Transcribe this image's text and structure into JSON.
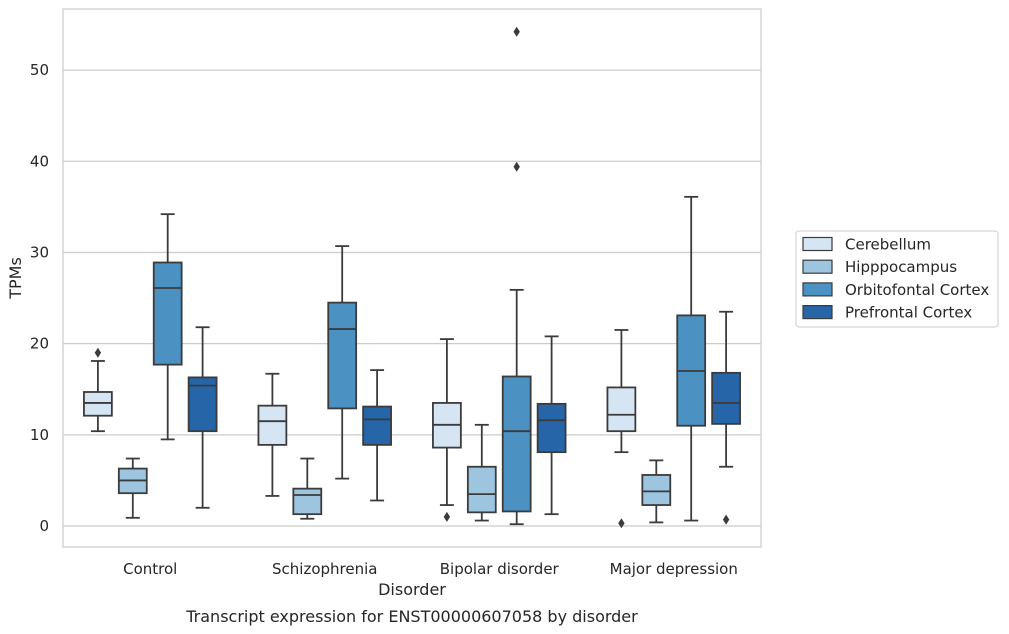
{
  "chart_data": {
    "type": "box",
    "xlabel": "Disorder",
    "ylabel": "TPMs",
    "caption": "Transcript expression for ENST00000607058 by disorder",
    "ylim": [
      -2.3,
      56.7
    ],
    "yticks": [
      0,
      10,
      20,
      30,
      40,
      50
    ],
    "grid": "horizontal",
    "legend_position": "right",
    "categories": [
      "Control",
      "Schizophrenia",
      "Bipolar disorder",
      "Major depression"
    ],
    "series": [
      {
        "name": "Cerebellum",
        "color": "#d5e5f3",
        "boxes": [
          {
            "whislo": 10.4,
            "q1": 12.1,
            "med": 13.5,
            "q3": 14.7,
            "whishi": 18.1,
            "fliers": [
              19.0
            ]
          },
          {
            "whislo": 3.3,
            "q1": 8.9,
            "med": 11.5,
            "q3": 13.2,
            "whishi": 16.7,
            "fliers": []
          },
          {
            "whislo": 2.3,
            "q1": 8.6,
            "med": 11.1,
            "q3": 13.5,
            "whishi": 20.5,
            "fliers": [
              1.0
            ]
          },
          {
            "whislo": 8.1,
            "q1": 10.4,
            "med": 12.2,
            "q3": 15.2,
            "whishi": 21.5,
            "fliers": [
              0.3
            ]
          }
        ]
      },
      {
        "name": "Hipppocampus",
        "color": "#9dc5df",
        "boxes": [
          {
            "whislo": 0.9,
            "q1": 3.6,
            "med": 5.0,
            "q3": 6.3,
            "whishi": 7.4,
            "fliers": []
          },
          {
            "whislo": 0.8,
            "q1": 1.3,
            "med": 3.4,
            "q3": 4.1,
            "whishi": 7.4,
            "fliers": []
          },
          {
            "whislo": 0.6,
            "q1": 1.5,
            "med": 3.5,
            "q3": 6.5,
            "whishi": 11.1,
            "fliers": []
          },
          {
            "whislo": 0.4,
            "q1": 2.3,
            "med": 3.8,
            "q3": 5.6,
            "whishi": 7.2,
            "fliers": []
          }
        ]
      },
      {
        "name": "Orbitofontal Cortex",
        "color": "#4b91c2",
        "boxes": [
          {
            "whislo": 9.5,
            "q1": 17.7,
            "med": 26.1,
            "q3": 28.9,
            "whishi": 34.2,
            "fliers": []
          },
          {
            "whislo": 5.2,
            "q1": 12.9,
            "med": 21.6,
            "q3": 24.5,
            "whishi": 30.7,
            "fliers": []
          },
          {
            "whislo": 0.2,
            "q1": 1.6,
            "med": 10.4,
            "q3": 16.4,
            "whishi": 25.9,
            "fliers": [
              39.4,
              54.2
            ]
          },
          {
            "whislo": 0.6,
            "q1": 11.0,
            "med": 17.0,
            "q3": 23.1,
            "whishi": 36.1,
            "fliers": []
          }
        ]
      },
      {
        "name": "Prefrontal Cortex",
        "color": "#2565a8",
        "boxes": [
          {
            "whislo": 2.0,
            "q1": 10.4,
            "med": 15.4,
            "q3": 16.3,
            "whishi": 21.8,
            "fliers": []
          },
          {
            "whislo": 2.8,
            "q1": 8.9,
            "med": 11.7,
            "q3": 13.1,
            "whishi": 17.1,
            "fliers": []
          },
          {
            "whislo": 1.3,
            "q1": 8.1,
            "med": 11.6,
            "q3": 13.4,
            "whishi": 20.8,
            "fliers": []
          },
          {
            "whislo": 6.5,
            "q1": 11.2,
            "med": 13.5,
            "q3": 16.8,
            "whishi": 23.5,
            "fliers": [
              0.7
            ]
          }
        ]
      }
    ]
  }
}
